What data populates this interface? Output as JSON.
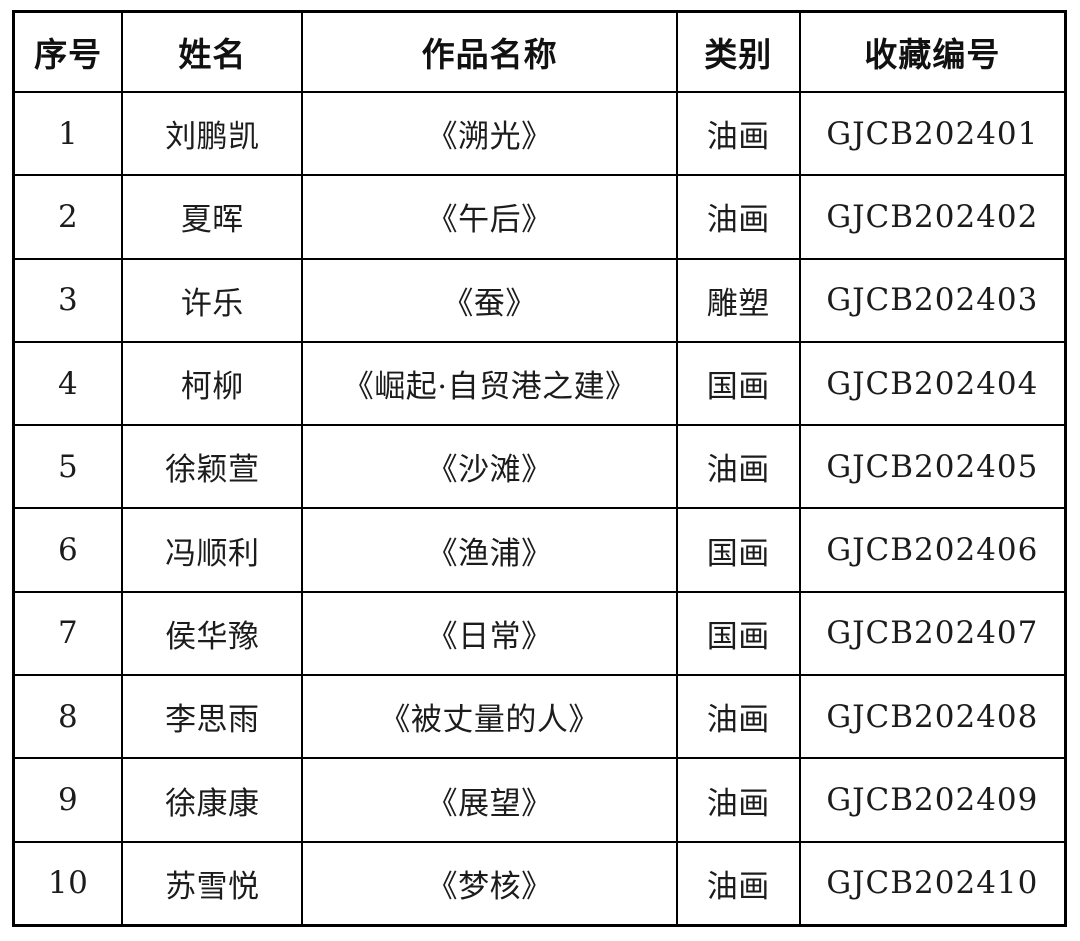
{
  "colors": {
    "border": "#000000",
    "background": "#ffffff",
    "header_text": "#111111",
    "body_text": "#1c1c1c"
  },
  "table": {
    "columns": [
      "序号",
      "姓名",
      "作品名称",
      "类别",
      "收藏编号"
    ],
    "rows": [
      [
        "1",
        "刘鹏凯",
        "《溯光》",
        "油画",
        "GJCB202401"
      ],
      [
        "2",
        "夏晖",
        "《午后》",
        "油画",
        "GJCB202402"
      ],
      [
        "3",
        "许乐",
        "《蚕》",
        "雕塑",
        "GJCB202403"
      ],
      [
        "4",
        "柯柳",
        "《崛起·自贸港之建》",
        "国画",
        "GJCB202404"
      ],
      [
        "5",
        "徐颖萱",
        "《沙滩》",
        "油画",
        "GJCB202405"
      ],
      [
        "6",
        "冯顺利",
        "《渔浦》",
        "国画",
        "GJCB202406"
      ],
      [
        "7",
        "侯华豫",
        "《日常》",
        "国画",
        "GJCB202407"
      ],
      [
        "8",
        "李思雨",
        "《被丈量的人》",
        "油画",
        "GJCB202408"
      ],
      [
        "9",
        "徐康康",
        "《展望》",
        "油画",
        "GJCB202409"
      ],
      [
        "10",
        "苏雪悦",
        "《梦核》",
        "油画",
        "GJCB202410"
      ]
    ]
  }
}
